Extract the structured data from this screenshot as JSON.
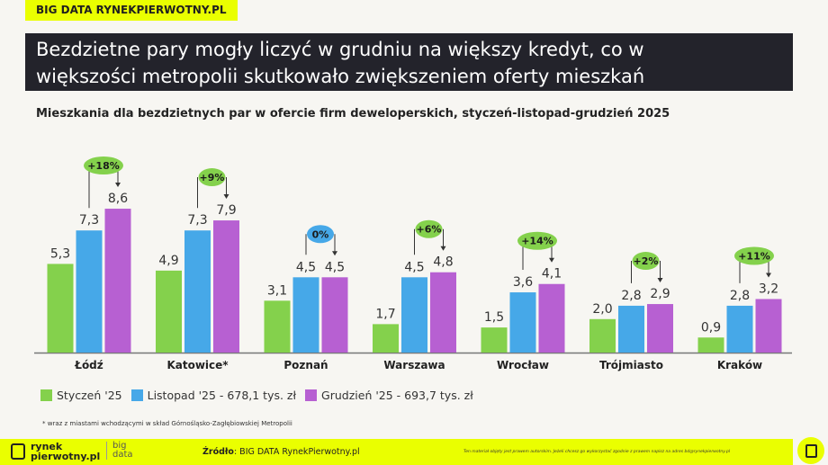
{
  "tag": "BIG DATA RYNEKPIERWOTNY.PL",
  "title_line1": "Bezdzietne pary mogły liczyć w grudniu na większy kredyt, co w",
  "title_line2": "większości metropolii skutkowało zwiększeniem oferty mieszkań",
  "chart_data": {
    "type": "bar",
    "title": "Mieszkania dla bezdzietnych par w ofercie firm deweloperskich, styczeń-listopad-grudzień 2025",
    "categories": [
      "Łódź",
      "Katowice*",
      "Poznań",
      "Warszawa",
      "Wrocław",
      "Trójmiasto",
      "Kraków"
    ],
    "series": [
      {
        "name": "Styczeń '25",
        "color": "#84d14c",
        "values": [
          5.3,
          4.9,
          3.1,
          1.7,
          1.5,
          2.0,
          0.9
        ],
        "labels": [
          "5,3",
          "4,9",
          "3,1",
          "1,7",
          "1,5",
          "2,0",
          "0,9"
        ]
      },
      {
        "name": "Listopad '25 - 678,1 tys. zł",
        "color": "#46a8e8",
        "values": [
          7.3,
          7.3,
          4.5,
          4.5,
          3.6,
          2.8,
          2.8
        ],
        "labels": [
          "7,3",
          "7,3",
          "4,5",
          "4,5",
          "3,6",
          "2,8",
          "2,8"
        ]
      },
      {
        "name": "Grudzień '25 - 693,7 tys. zł",
        "color": "#b760d2",
        "values": [
          8.6,
          7.9,
          4.5,
          4.8,
          4.1,
          2.9,
          3.2
        ],
        "labels": [
          "8,6",
          "7,9",
          "4,5",
          "4,8",
          "4,1",
          "2,9",
          "3,2"
        ]
      }
    ],
    "changes": [
      "+18%",
      "+9%",
      "0%",
      "+6%",
      "+14%",
      "+2%",
      "+11%"
    ],
    "change_colors": {
      "positive": "#84d14c",
      "zero": "#46a8e8"
    },
    "legend": "bottom-left",
    "grid": false
  },
  "note": "* wraz z miastami wchodzącymi w skład Górnośląsko-Zagłębiowskiej Metropolii",
  "footer": {
    "logo_line1": "rynek",
    "logo_line2": "pierwotny.pl",
    "bd1": "big",
    "bd2": "data",
    "source_label": "Źródło",
    "source_text": ": BIG DATA RynekPierwotny.pl",
    "copyright": "Ten materiał objęty jest prawem autorskim. Jeżeli chcesz go wykorzystać zgodnie z prawem napisz na adres bd@rynekpierwotny.pl"
  }
}
